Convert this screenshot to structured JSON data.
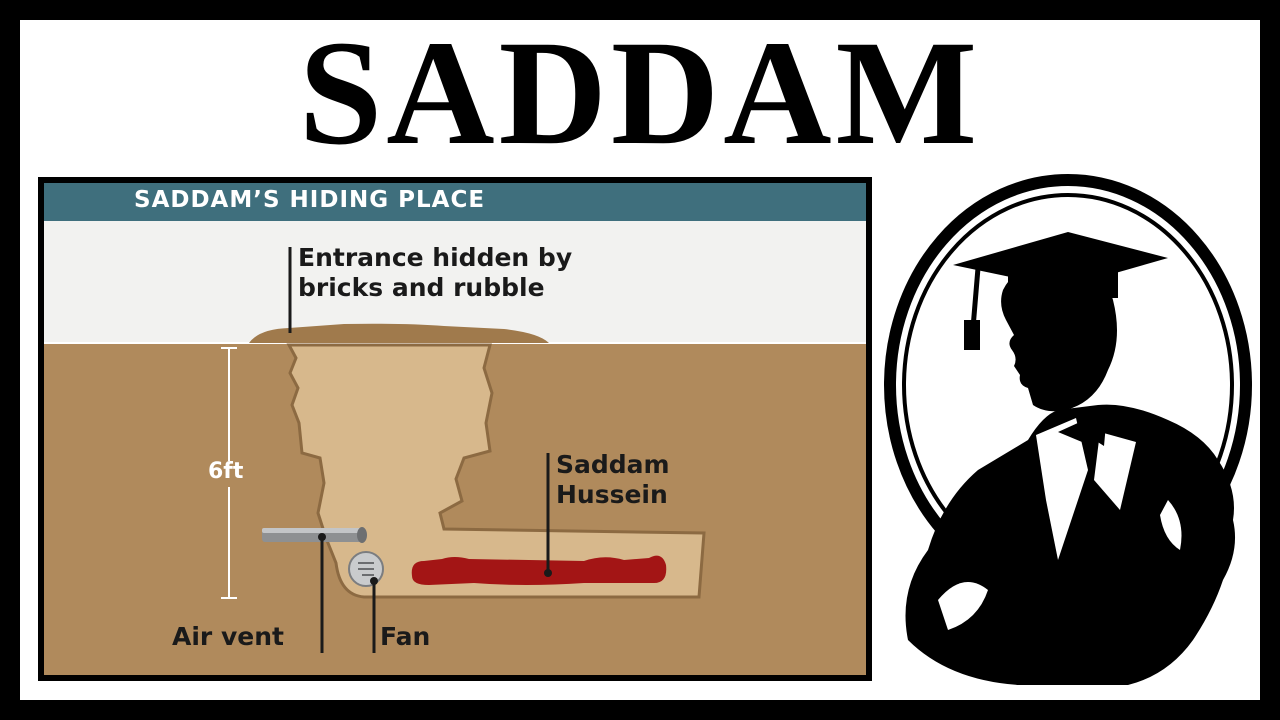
{
  "title": "SADDAM",
  "diagram": {
    "header": "SADDAM’S HIDING PLACE",
    "entrance_label_line1": "Entrance hidden by",
    "entrance_label_line2": "bricks and rubble",
    "depth_label": "6ft",
    "person_label_line1": "Saddam",
    "person_label_line2": "Hussein",
    "air_vent_label": "Air vent",
    "fan_label": "Fan"
  },
  "emblem": {
    "icon": "graduate-silhouette-icon"
  },
  "colors": {
    "background_border": "#000000",
    "header_bar": "#3f6f7d",
    "soil": "#b08a5c",
    "tunnel": "#d7b88c",
    "figure": "#a31515"
  }
}
